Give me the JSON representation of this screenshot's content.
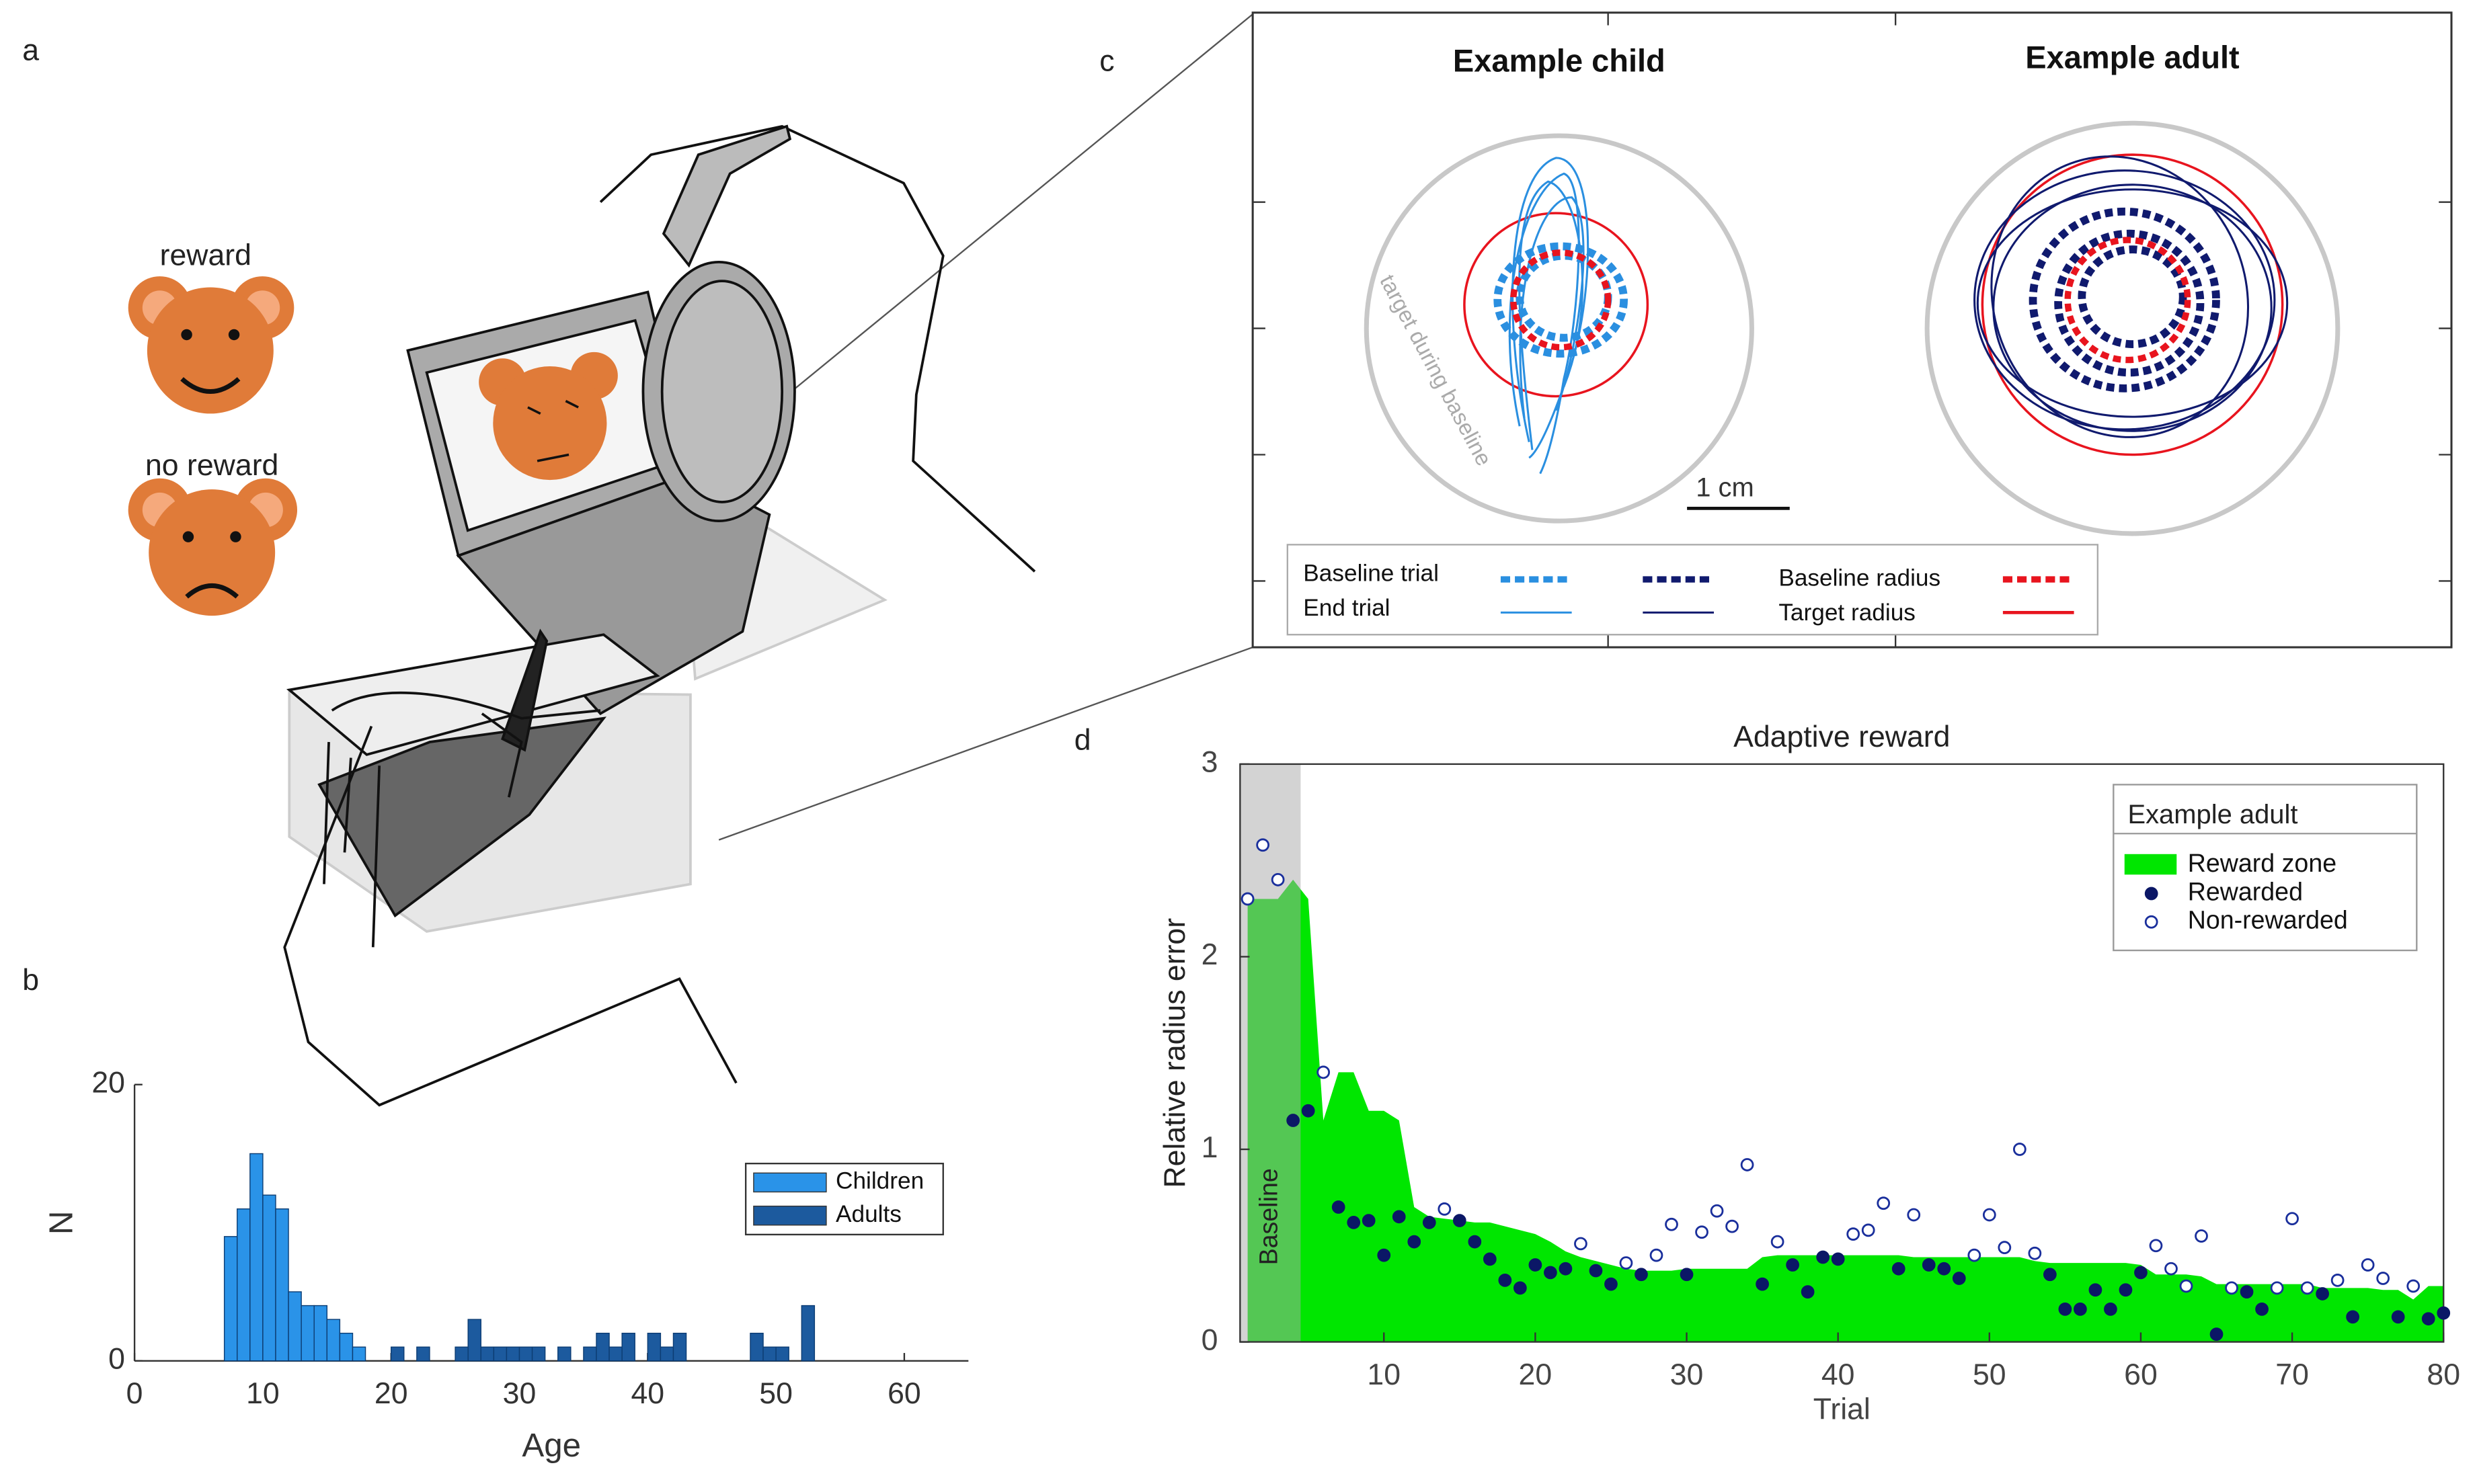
{
  "panels": {
    "a": "a",
    "b": "b",
    "c": "c",
    "d": "d"
  },
  "illustration": {
    "reward": "reward",
    "no_reward": "no reward"
  },
  "traces": {
    "left_title": "Example child",
    "right_title": "Example adult",
    "baseline_target": "target during baseline",
    "scale_bar": "1 cm",
    "legend": [
      "Baseline trial",
      "End trial",
      "Baseline radius",
      "Target radius"
    ]
  },
  "chart_data": [
    {
      "type": "histogram",
      "xlabel": "Age",
      "ylabel": "N",
      "xlim": [
        0,
        65
      ],
      "xticks": [
        0,
        10,
        20,
        30,
        40,
        50,
        60
      ],
      "ylim": [
        0,
        20
      ],
      "yticks": [
        0,
        20
      ],
      "legend": "upper right",
      "series": [
        {
          "name": "Children",
          "color": "#2a93e8",
          "bins": [
            7,
            8,
            9,
            10,
            11,
            12,
            13,
            14,
            15,
            16,
            17,
            18
          ],
          "counts": [
            9,
            11,
            15,
            12,
            11,
            5,
            4,
            4,
            3,
            2,
            1
          ]
        },
        {
          "name": "Adults",
          "color": "#1c5a9e",
          "bins": [
            20,
            21,
            22,
            23,
            24,
            25,
            26,
            27,
            28,
            29,
            30,
            31,
            32,
            33,
            34,
            35,
            36,
            37,
            38,
            39,
            40,
            41,
            42,
            43,
            44,
            45,
            46,
            47,
            48,
            49,
            50,
            51,
            52,
            53,
            54
          ],
          "counts": [
            1,
            0,
            1,
            0,
            0,
            1,
            3,
            1,
            1,
            1,
            1,
            1,
            0,
            1,
            0,
            1,
            2,
            1,
            2,
            0,
            2,
            1,
            2,
            0,
            0,
            0,
            0,
            0,
            2,
            1,
            1,
            0,
            4,
            0
          ]
        }
      ]
    },
    {
      "type": "scatter",
      "title": "Adaptive reward",
      "xlabel": "Trial",
      "ylabel": "Relative radius error",
      "xlim": [
        0.5,
        80
      ],
      "xticks": [
        10,
        20,
        30,
        40,
        50,
        60,
        70,
        80
      ],
      "ylim": [
        0,
        3
      ],
      "yticks": [
        0,
        1,
        2,
        3
      ],
      "legend": "upper right",
      "legend_title": "Example adult",
      "baseline": {
        "label": "Baseline",
        "span": [
          0.5,
          4.5
        ]
      },
      "area": {
        "name": "Reward zone",
        "color": "#00e600",
        "x": [
          1,
          2,
          3,
          4,
          5,
          6,
          7,
          8,
          9,
          10,
          11,
          12,
          13,
          14,
          15,
          16,
          17,
          18,
          19,
          20,
          21,
          22,
          23,
          24,
          25,
          26,
          27,
          28,
          29,
          30,
          31,
          32,
          33,
          34,
          35,
          36,
          37,
          38,
          39,
          40,
          41,
          42,
          43,
          44,
          45,
          46,
          47,
          48,
          49,
          50,
          51,
          52,
          53,
          54,
          55,
          56,
          57,
          58,
          59,
          60,
          61,
          62,
          63,
          64,
          65,
          66,
          67,
          68,
          69,
          70,
          71,
          72,
          73,
          74,
          75,
          76,
          77,
          78,
          79,
          80
        ],
        "values": [
          2.3,
          2.3,
          2.3,
          2.4,
          2.3,
          1.15,
          1.4,
          1.4,
          1.2,
          1.2,
          1.15,
          0.7,
          0.65,
          0.64,
          0.63,
          0.62,
          0.62,
          0.6,
          0.58,
          0.56,
          0.52,
          0.47,
          0.44,
          0.42,
          0.4,
          0.38,
          0.37,
          0.37,
          0.37,
          0.38,
          0.38,
          0.38,
          0.38,
          0.38,
          0.44,
          0.45,
          0.45,
          0.45,
          0.45,
          0.45,
          0.45,
          0.45,
          0.45,
          0.45,
          0.44,
          0.44,
          0.44,
          0.44,
          0.44,
          0.44,
          0.44,
          0.44,
          0.42,
          0.41,
          0.41,
          0.41,
          0.41,
          0.41,
          0.41,
          0.4,
          0.35,
          0.35,
          0.35,
          0.34,
          0.3,
          0.3,
          0.3,
          0.3,
          0.3,
          0.3,
          0.3,
          0.28,
          0.28,
          0.28,
          0.28,
          0.27,
          0.27,
          0.22,
          0.29,
          0.29
        ]
      },
      "series": [
        {
          "name": "Rewarded",
          "color": "#0b1766",
          "marker": "filled",
          "x": [
            4,
            5,
            7,
            8,
            9,
            10,
            11,
            12,
            13,
            15,
            16,
            17,
            18,
            19,
            20,
            21,
            22,
            24,
            25,
            27,
            30,
            35,
            37,
            38,
            39,
            40,
            44,
            46,
            47,
            48,
            54,
            55,
            56,
            57,
            58,
            59,
            60,
            65,
            67,
            68,
            72,
            74,
            77,
            79,
            80
          ],
          "values": [
            1.15,
            1.2,
            0.7,
            0.62,
            0.63,
            0.45,
            0.65,
            0.52,
            0.62,
            0.63,
            0.52,
            0.43,
            0.32,
            0.28,
            0.4,
            0.36,
            0.38,
            0.37,
            0.3,
            0.35,
            0.35,
            0.3,
            0.4,
            0.26,
            0.44,
            0.43,
            0.38,
            0.4,
            0.38,
            0.33,
            0.35,
            0.17,
            0.17,
            0.27,
            0.17,
            0.27,
            0.36,
            0.04,
            0.26,
            0.17,
            0.25,
            0.13,
            0.13,
            0.12,
            0.15
          ]
        },
        {
          "name": "Non-rewarded",
          "color": "#1a2f9c",
          "marker": "open",
          "x": [
            1,
            2,
            3,
            6,
            14,
            23,
            26,
            28,
            29,
            31,
            32,
            33,
            34,
            36,
            41,
            42,
            43,
            45,
            49,
            50,
            51,
            52,
            53,
            61,
            62,
            63,
            64,
            66,
            69,
            70,
            71,
            73,
            75,
            76,
            78
          ],
          "values": [
            2.3,
            2.58,
            2.4,
            1.4,
            0.69,
            0.51,
            0.41,
            0.45,
            0.61,
            0.57,
            0.68,
            0.6,
            0.92,
            0.52,
            0.56,
            0.58,
            0.72,
            0.66,
            0.45,
            0.66,
            0.49,
            1,
            0.46,
            0.5,
            0.38,
            0.29,
            0.55,
            0.28,
            0.28,
            0.64,
            0.28,
            0.32,
            0.4,
            0.33,
            0.29
          ]
        }
      ]
    }
  ]
}
